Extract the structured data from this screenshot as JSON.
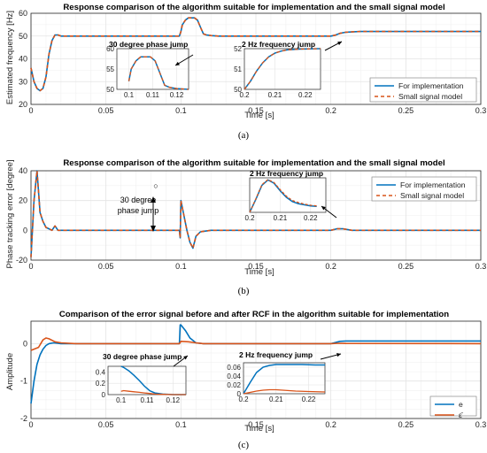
{
  "colors": {
    "blue": "#0072BD",
    "orange": "#D95319",
    "grid": "#e3e3e3",
    "axis": "#262626"
  },
  "captions": [
    "(a)",
    "(b)",
    "(c)"
  ],
  "chart_data": [
    {
      "id": "a",
      "type": "line",
      "title": "Response comparison of the algorithm suitable for implementation and the small signal model",
      "xlabel": "Time [s]",
      "ylabel": "Estimated frequency [Hz]",
      "xlim": [
        0,
        0.3
      ],
      "ylim": [
        20,
        60
      ],
      "xticks": [
        0,
        0.05,
        0.1,
        0.15,
        0.2,
        0.25,
        0.3
      ],
      "xtick_labels": [
        "0",
        "0.05",
        "0.1",
        "0.15",
        "0.2",
        "0.25",
        "0.3"
      ],
      "yticks": [
        20,
        30,
        40,
        50,
        60
      ],
      "ytick_labels": [
        "20",
        "30",
        "40",
        "50",
        "60"
      ],
      "grid": true,
      "legend_position": "lower-right",
      "legend": [
        "For implementation",
        "Small signal model"
      ],
      "series": [
        {
          "name": "For implementation",
          "style": "solid",
          "color": "blue",
          "x": [
            0,
            0.002,
            0.004,
            0.006,
            0.008,
            0.01,
            0.012,
            0.014,
            0.016,
            0.018,
            0.02,
            0.025,
            0.03,
            0.05,
            0.099,
            0.1,
            0.101,
            0.103,
            0.105,
            0.107,
            0.109,
            0.111,
            0.113,
            0.115,
            0.117,
            0.12,
            0.125,
            0.2,
            0.203,
            0.206,
            0.21,
            0.215,
            0.22,
            0.23,
            0.3
          ],
          "y": [
            36,
            30,
            27,
            26,
            27,
            32,
            42,
            48,
            50.5,
            50.5,
            50,
            50,
            50,
            50,
            50,
            52,
            55,
            57,
            58,
            58,
            58,
            57,
            54,
            51,
            50.5,
            50.2,
            50,
            50,
            50.4,
            51.2,
            51.7,
            51.9,
            52,
            52,
            52
          ]
        },
        {
          "name": "Small signal model",
          "style": "dashed",
          "color": "orange",
          "x": [
            0,
            0.002,
            0.004,
            0.006,
            0.008,
            0.01,
            0.012,
            0.014,
            0.016,
            0.018,
            0.02,
            0.025,
            0.03,
            0.05,
            0.099,
            0.1,
            0.101,
            0.103,
            0.105,
            0.107,
            0.109,
            0.111,
            0.113,
            0.115,
            0.117,
            0.12,
            0.125,
            0.2,
            0.203,
            0.206,
            0.21,
            0.215,
            0.22,
            0.23,
            0.3
          ],
          "y": [
            36,
            30,
            27,
            26,
            27,
            32,
            42,
            48,
            50.5,
            50.5,
            50,
            50,
            50,
            50,
            50,
            52,
            55,
            57,
            58,
            58,
            58,
            57,
            54,
            51,
            50.5,
            50.2,
            50,
            50,
            50.4,
            51.2,
            51.7,
            51.9,
            52,
            52,
            52
          ]
        }
      ],
      "annotations": [
        "30 degree phase jump",
        "2 Hz frequency jump"
      ],
      "insets": [
        {
          "xlim": [
            0.095,
            0.125
          ],
          "ylim": [
            50,
            60
          ],
          "xticks": [
            0.1,
            0.11,
            0.12
          ],
          "xtick_labels": [
            "0.1",
            "0.11",
            "0.12"
          ],
          "yticks": [
            50,
            55,
            60
          ],
          "ytick_labels": [
            "50",
            "55",
            "60"
          ],
          "x": [
            0.1,
            0.101,
            0.103,
            0.105,
            0.107,
            0.109,
            0.111,
            0.113,
            0.115,
            0.117,
            0.12,
            0.125
          ],
          "y": [
            52,
            55,
            57,
            58,
            58,
            58,
            57,
            54,
            51,
            50.5,
            50.2,
            50
          ]
        },
        {
          "xlim": [
            0.2,
            0.225
          ],
          "ylim": [
            50,
            52
          ],
          "xticks": [
            0.2,
            0.21,
            0.22
          ],
          "xtick_labels": [
            "0.2",
            "0.21",
            "0.22"
          ],
          "yticks": [
            50,
            51,
            52
          ],
          "ytick_labels": [
            "50",
            "51",
            "52"
          ],
          "x": [
            0.2,
            0.202,
            0.204,
            0.206,
            0.208,
            0.21,
            0.212,
            0.214,
            0.218,
            0.225
          ],
          "y": [
            50,
            50.4,
            50.9,
            51.3,
            51.6,
            51.78,
            51.88,
            51.94,
            51.98,
            52
          ]
        }
      ]
    },
    {
      "id": "b",
      "type": "line",
      "title": "Response comparison of the algorithm suitable for implementation and the small signal model",
      "xlabel": "Time [s]",
      "ylabel": "Phase tracking error [degree]",
      "xlim": [
        0,
        0.3
      ],
      "ylim": [
        -20,
        40
      ],
      "xticks": [
        0,
        0.05,
        0.1,
        0.15,
        0.2,
        0.25,
        0.3
      ],
      "xtick_labels": [
        "0",
        "0.05",
        "0.1",
        "0.15",
        "0.2",
        "0.25",
        "0.3"
      ],
      "yticks": [
        -20,
        0,
        20,
        40
      ],
      "ytick_labels": [
        "-20",
        "0",
        "20",
        "40"
      ],
      "grid": true,
      "legend_position": "upper-right",
      "legend": [
        "For implementation",
        "Small signal model"
      ],
      "series": [
        {
          "name": "For implementation",
          "style": "solid",
          "color": "blue",
          "x": [
            0,
            0.002,
            0.004,
            0.006,
            0.008,
            0.01,
            0.012,
            0.014,
            0.016,
            0.018,
            0.02,
            0.025,
            0.03,
            0.05,
            0.099,
            0.0995,
            0.1,
            0.102,
            0.104,
            0.106,
            0.108,
            0.11,
            0.113,
            0.12,
            0.2,
            0.204,
            0.208,
            0.214,
            0.22,
            0.3
          ],
          "y": [
            -18,
            20,
            40,
            12,
            6,
            2,
            1,
            0,
            3,
            0,
            0,
            0,
            0,
            0,
            0,
            -5,
            20,
            10,
            0,
            -8,
            -12,
            -4,
            -1,
            0,
            0,
            1,
            1,
            0,
            0,
            0
          ]
        },
        {
          "name": "Small signal model",
          "style": "dashed",
          "color": "orange",
          "x": [
            0,
            0.002,
            0.004,
            0.006,
            0.008,
            0.01,
            0.012,
            0.014,
            0.016,
            0.018,
            0.02,
            0.025,
            0.03,
            0.05,
            0.099,
            0.0995,
            0.1,
            0.102,
            0.104,
            0.106,
            0.108,
            0.11,
            0.113,
            0.12,
            0.2,
            0.204,
            0.208,
            0.214,
            0.22,
            0.3
          ],
          "y": [
            -18,
            20,
            40,
            12,
            6,
            2,
            1,
            0,
            3,
            0,
            0,
            0,
            0,
            0,
            0,
            -5,
            20,
            10,
            0,
            -8,
            -12,
            -4,
            -1,
            0,
            0,
            1,
            1,
            0,
            0,
            0
          ]
        }
      ],
      "annotations": [
        "30 degree",
        "phase jump",
        "2 Hz frequency jump",
        "○"
      ],
      "insets": [
        {
          "xlim": [
            0.2,
            0.225
          ],
          "ylim": [
            0,
            1.6
          ],
          "xticks": [
            0.2,
            0.21,
            0.22
          ],
          "xtick_labels": [
            "0.2",
            "0.21",
            "0.22"
          ],
          "blue": {
            "x": [
              0.2,
              0.202,
              0.204,
              0.206,
              0.208,
              0.21,
              0.212,
              0.214,
              0.216,
              0.218,
              0.22,
              0.222
            ],
            "y": [
              0,
              0.6,
              1.25,
              1.5,
              1.35,
              1.0,
              0.7,
              0.5,
              0.4,
              0.35,
              0.3,
              0.28
            ]
          },
          "orange": {
            "x": [
              0.2,
              0.202,
              0.204,
              0.206,
              0.208,
              0.21,
              0.212,
              0.214,
              0.216,
              0.218,
              0.22,
              0.222
            ],
            "y": [
              0,
              0.62,
              1.28,
              1.52,
              1.38,
              1.05,
              0.75,
              0.55,
              0.45,
              0.38,
              0.33,
              0.3
            ]
          }
        }
      ]
    },
    {
      "id": "c",
      "type": "line",
      "title": "Comparison of the error signal before and after RCF in the algorithm suitable for implementation",
      "xlabel": "Time [s]",
      "ylabel": "Amplitude",
      "xlim": [
        0,
        0.3
      ],
      "ylim": [
        -2,
        0.6
      ],
      "xticks": [
        0,
        0.05,
        0.1,
        0.15,
        0.2,
        0.25,
        0.3
      ],
      "xtick_labels": [
        "0",
        "0.05",
        "0.1",
        "0.15",
        "0.2",
        "0.25",
        "0.3"
      ],
      "yticks": [
        -2,
        -1,
        0
      ],
      "ytick_labels": [
        "-2",
        "-1",
        "0"
      ],
      "grid": true,
      "legend_position": "lower-right",
      "legend": [
        "e",
        "ε̄"
      ],
      "series": [
        {
          "name": "e",
          "style": "solid",
          "color": "blue",
          "x": [
            0,
            0.002,
            0.004,
            0.006,
            0.008,
            0.01,
            0.012,
            0.015,
            0.02,
            0.099,
            0.0995,
            0.1,
            0.103,
            0.106,
            0.11,
            0.115,
            0.2,
            0.203,
            0.206,
            0.21,
            0.3
          ],
          "y": [
            -1.6,
            -1.0,
            -0.55,
            -0.3,
            -0.15,
            -0.05,
            0,
            0.02,
            0,
            0,
            0.5,
            0.5,
            0.35,
            0.15,
            0.02,
            0,
            0,
            0.03,
            0.06,
            0.07,
            0.07
          ]
        },
        {
          "name": "ε̄",
          "style": "solid",
          "color": "orange",
          "x": [
            0,
            0.005,
            0.008,
            0.01,
            0.012,
            0.016,
            0.02,
            0.03,
            0.099,
            0.1,
            0.105,
            0.11,
            0.115,
            0.2,
            0.205,
            0.21,
            0.3
          ],
          "y": [
            -0.18,
            -0.1,
            0.1,
            0.15,
            0.13,
            0.05,
            0.02,
            0,
            0,
            0.06,
            0.05,
            0.02,
            0,
            0,
            0.01,
            0.005,
            0
          ]
        }
      ],
      "annotations": [
        "30 degree phase jump",
        "2 Hz frequency jump"
      ],
      "insets": [
        {
          "xlim": [
            0.095,
            0.125
          ],
          "ylim": [
            0,
            0.5
          ],
          "xticks": [
            0.1,
            0.11,
            0.12
          ],
          "xtick_labels": [
            "0.1",
            "0.11",
            "0.12"
          ],
          "yticks": [
            0,
            0.2,
            0.4
          ],
          "ytick_labels": [
            "0",
            "0.2",
            "0.4"
          ],
          "blue": {
            "x": [
              0.1,
              0.101,
              0.103,
              0.105,
              0.107,
              0.109,
              0.111,
              0.113,
              0.116,
              0.12,
              0.125
            ],
            "y": [
              0.5,
              0.48,
              0.42,
              0.34,
              0.25,
              0.15,
              0.07,
              0.03,
              0.01,
              0,
              0
            ]
          },
          "orange": {
            "x": [
              0.1,
              0.101,
              0.103,
              0.105,
              0.107,
              0.109,
              0.111,
              0.113,
              0.116,
              0.12,
              0.125
            ],
            "y": [
              0.06,
              0.07,
              0.06,
              0.05,
              0.04,
              0.03,
              0.02,
              0.01,
              0.005,
              0,
              0
            ]
          }
        },
        {
          "xlim": [
            0.2,
            0.225
          ],
          "ylim": [
            0,
            0.07
          ],
          "xticks": [
            0.2,
            0.21,
            0.22
          ],
          "xtick_labels": [
            "0.2",
            "0.21",
            "0.22"
          ],
          "yticks": [
            0,
            0.02,
            0.04,
            0.06
          ],
          "ytick_labels": [
            "0",
            "0.02",
            "0.04",
            "0.06"
          ],
          "blue": {
            "x": [
              0.2,
              0.202,
              0.204,
              0.206,
              0.208,
              0.21,
              0.214,
              0.218,
              0.222,
              0.225
            ],
            "y": [
              0,
              0.025,
              0.048,
              0.06,
              0.064,
              0.066,
              0.066,
              0.066,
              0.065,
              0.065
            ]
          },
          "orange": {
            "x": [
              0.2,
              0.202,
              0.204,
              0.206,
              0.208,
              0.21,
              0.212,
              0.216,
              0.22,
              0.225
            ],
            "y": [
              0,
              0.003,
              0.006,
              0.008,
              0.009,
              0.009,
              0.008,
              0.006,
              0.005,
              0.004
            ]
          }
        }
      ]
    }
  ]
}
